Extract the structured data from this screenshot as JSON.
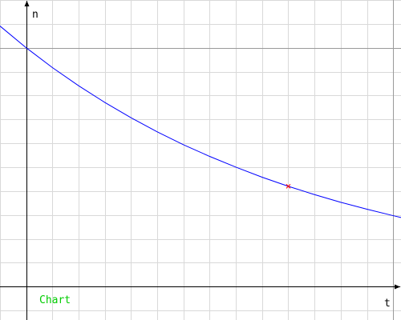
{
  "chart_data": {
    "type": "line",
    "xlabel": "t",
    "ylabel": "n",
    "caption": "Chart",
    "xlim": [
      -1,
      14.3
    ],
    "ylim": [
      -1.4,
      12
    ],
    "grid": true,
    "series": [
      {
        "color": "#0000ff",
        "x": [
          -1,
          0,
          1,
          2,
          3,
          4,
          5,
          6,
          7,
          8,
          9,
          10,
          11,
          12,
          13,
          14,
          14.3
        ],
        "y": [
          10.91,
          10,
          9.17,
          8.41,
          7.71,
          7.07,
          6.48,
          5.94,
          5.45,
          5.0,
          4.58,
          4.2,
          3.85,
          3.53,
          3.24,
          2.97,
          2.89
        ]
      }
    ],
    "marked_point": {
      "x": 10,
      "y": 4.2,
      "color": "#ff0000"
    },
    "reference_lines": {
      "horizontal_y": 10,
      "vertical_x": 14
    },
    "colors": {
      "axis": "#000000",
      "grid": "#d9d9d9",
      "reference": "#9a9a9a",
      "caption": "#00cc00"
    }
  }
}
